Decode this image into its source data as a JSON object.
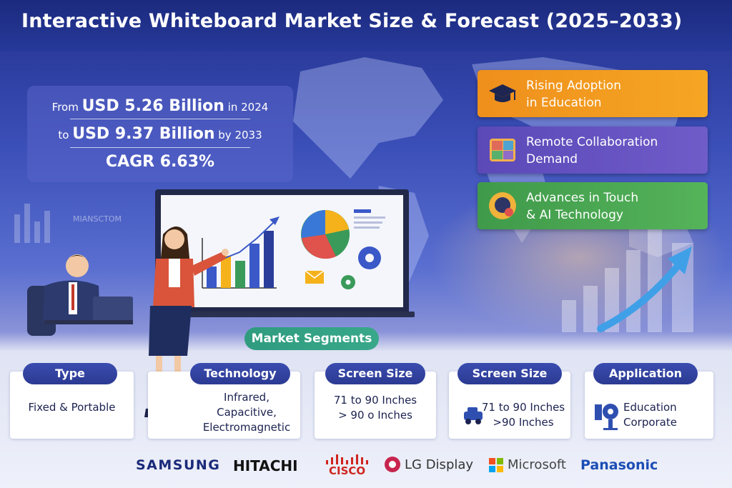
{
  "title": "Interactive Whiteboard Market Size & Forecast (2025–2033)",
  "stats": {
    "line1_prefix": "From",
    "line1_value": "USD 5.26 Billion",
    "line1_suffix": "in 2024",
    "line2_prefix": "to",
    "line2_value": "USD 9.37 Billion",
    "line2_suffix": "by 2033",
    "cagr": "CAGR 6.63%"
  },
  "drivers": [
    {
      "line1": "Rising Adoption",
      "line2": "in Education",
      "icon": "graduation-cap-icon",
      "color": "#f39a1f"
    },
    {
      "line1": "Remote Collaboration",
      "line2": "Demand",
      "icon": "video-call-icon",
      "color": "#6452bf"
    },
    {
      "line1": "Advances in Touch",
      "line2": "& AI Technology",
      "icon": "ai-head-icon",
      "color": "#48a852"
    }
  ],
  "background_text": "MIANSCTOM",
  "segments_title": "Market Segments",
  "segments": [
    {
      "head": "Type",
      "lines": [
        "Fixed & Portable"
      ]
    },
    {
      "head": "Technology",
      "lines": [
        "Infrared,",
        "Capacitive,",
        "Electromagnetic"
      ]
    },
    {
      "head": "Screen Size",
      "lines": [
        "71 to 90 Inches",
        "> 90 o Inches"
      ]
    },
    {
      "head": "Screen Size",
      "lines": [
        "71 to 90 Inches",
        ">90 Inches"
      ]
    },
    {
      "head": "Application",
      "lines": [
        "Education",
        "Corporate"
      ]
    }
  ],
  "logos": {
    "samsung": "SAMSUNG",
    "hitachi": "HITACHI",
    "cisco": "CISCO",
    "lg": "LG Display",
    "microsoft": "Microsoft",
    "panasonic": "Panasonic"
  },
  "colors": {
    "title_bg": "#1f2e85",
    "segment_header": "#3344a8",
    "segments_pill": "#2f9b7f",
    "accent_arrow": "#3fa0e8"
  }
}
